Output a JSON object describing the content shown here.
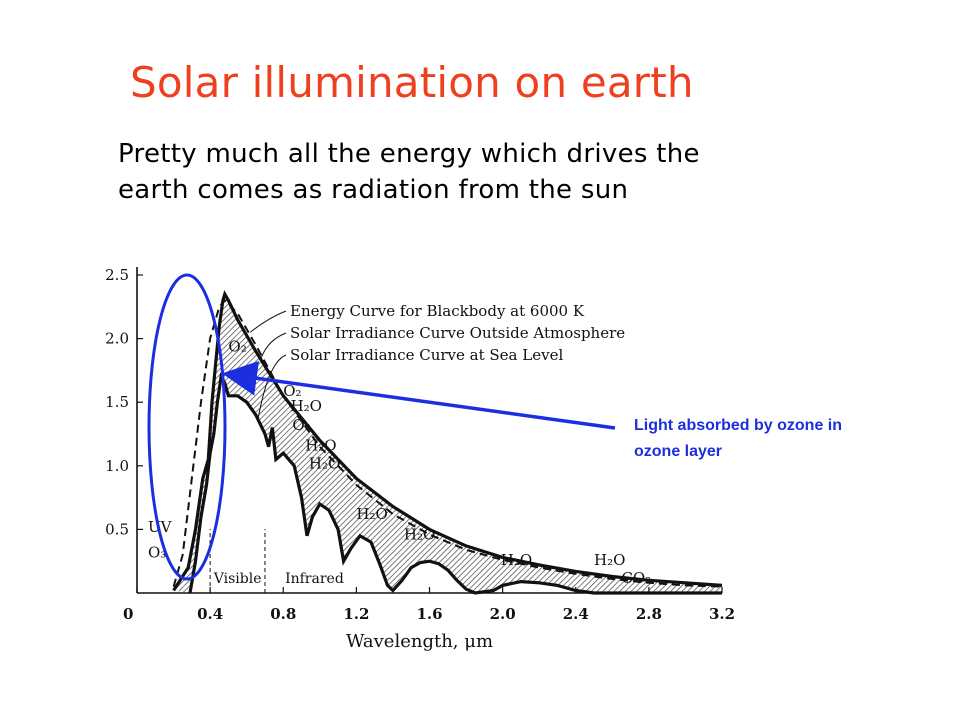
{
  "slide": {
    "title": "Solar illumination on earth",
    "title_color": "#ee3f1f",
    "body_lines": [
      "Pretty much all the energy which drives the",
      "earth comes as radiation from the sun"
    ]
  },
  "callout": {
    "lines": [
      "Light absorbed by ozone in",
      "ozone layer"
    ],
    "color": "#1b2fe0"
  },
  "chart_data": {
    "type": "line",
    "xlabel": "Wavelength, μm",
    "ylabel": "",
    "xlim": [
      0,
      3.2
    ],
    "ylim": [
      0,
      2.5
    ],
    "x_ticks": [
      "0",
      "0.4",
      "0.8",
      "1.2",
      "1.6",
      "2.0",
      "2.4",
      "2.8",
      "3.2"
    ],
    "y_ticks": [
      "0.5",
      "1.0",
      "1.5",
      "2.0",
      "2.5"
    ],
    "legend": [
      "Energy Curve for Blackbody at 6000 K",
      "Solar Irradiance Curve Outside Atmosphere",
      "Solar Irradiance Curve at Sea Level"
    ],
    "series": [
      {
        "name": "Energy Curve for Blackbody at 6000 K",
        "style": "dashed",
        "points": [
          [
            0.2,
            0.05
          ],
          [
            0.25,
            0.3
          ],
          [
            0.3,
            0.9
          ],
          [
            0.35,
            1.5
          ],
          [
            0.4,
            2.0
          ],
          [
            0.45,
            2.25
          ],
          [
            0.48,
            2.3
          ],
          [
            0.55,
            2.2
          ],
          [
            0.65,
            1.95
          ],
          [
            0.8,
            1.55
          ],
          [
            1.0,
            1.15
          ],
          [
            1.2,
            0.85
          ],
          [
            1.4,
            0.62
          ],
          [
            1.6,
            0.46
          ],
          [
            1.8,
            0.34
          ],
          [
            2.0,
            0.26
          ],
          [
            2.2,
            0.2
          ],
          [
            2.4,
            0.15
          ],
          [
            2.6,
            0.11
          ],
          [
            2.8,
            0.08
          ],
          [
            3.0,
            0.06
          ],
          [
            3.2,
            0.05
          ]
        ]
      },
      {
        "name": "Solar Irradiance Curve Outside Atmosphere",
        "style": "thick",
        "points": [
          [
            0.2,
            0.02
          ],
          [
            0.28,
            0.2
          ],
          [
            0.32,
            0.5
          ],
          [
            0.36,
            0.9
          ],
          [
            0.39,
            1.05
          ],
          [
            0.41,
            1.5
          ],
          [
            0.43,
            1.8
          ],
          [
            0.45,
            2.1
          ],
          [
            0.47,
            2.3
          ],
          [
            0.48,
            2.35
          ],
          [
            0.5,
            2.3
          ],
          [
            0.55,
            2.15
          ],
          [
            0.65,
            1.9
          ],
          [
            0.8,
            1.55
          ],
          [
            1.0,
            1.2
          ],
          [
            1.2,
            0.9
          ],
          [
            1.4,
            0.68
          ],
          [
            1.6,
            0.5
          ],
          [
            1.8,
            0.37
          ],
          [
            2.0,
            0.28
          ],
          [
            2.2,
            0.22
          ],
          [
            2.4,
            0.17
          ],
          [
            2.6,
            0.13
          ],
          [
            2.8,
            0.1
          ],
          [
            3.0,
            0.08
          ],
          [
            3.2,
            0.06
          ]
        ]
      },
      {
        "name": "Solar Irradiance Curve at Sea Level",
        "style": "thick",
        "points": [
          [
            0.29,
            0.0
          ],
          [
            0.32,
            0.25
          ],
          [
            0.35,
            0.6
          ],
          [
            0.38,
            0.85
          ],
          [
            0.4,
            1.1
          ],
          [
            0.42,
            1.25
          ],
          [
            0.44,
            1.5
          ],
          [
            0.46,
            1.7
          ],
          [
            0.48,
            1.65
          ],
          [
            0.5,
            1.55
          ],
          [
            0.55,
            1.55
          ],
          [
            0.6,
            1.5
          ],
          [
            0.65,
            1.4
          ],
          [
            0.7,
            1.25
          ],
          [
            0.72,
            1.15
          ],
          [
            0.74,
            1.3
          ],
          [
            0.76,
            1.05
          ],
          [
            0.8,
            1.1
          ],
          [
            0.86,
            1.0
          ],
          [
            0.9,
            0.75
          ],
          [
            0.93,
            0.45
          ],
          [
            0.96,
            0.6
          ],
          [
            1.0,
            0.7
          ],
          [
            1.05,
            0.65
          ],
          [
            1.1,
            0.5
          ],
          [
            1.13,
            0.25
          ],
          [
            1.17,
            0.35
          ],
          [
            1.22,
            0.45
          ],
          [
            1.28,
            0.4
          ],
          [
            1.33,
            0.22
          ],
          [
            1.37,
            0.06
          ],
          [
            1.4,
            0.02
          ],
          [
            1.45,
            0.1
          ],
          [
            1.5,
            0.2
          ],
          [
            1.55,
            0.24
          ],
          [
            1.6,
            0.25
          ],
          [
            1.65,
            0.23
          ],
          [
            1.7,
            0.18
          ],
          [
            1.75,
            0.1
          ],
          [
            1.8,
            0.03
          ],
          [
            1.85,
            0.0
          ],
          [
            1.95,
            0.02
          ],
          [
            2.0,
            0.06
          ],
          [
            2.1,
            0.09
          ],
          [
            2.2,
            0.08
          ],
          [
            2.3,
            0.06
          ],
          [
            2.4,
            0.02
          ],
          [
            2.5,
            0.0
          ],
          [
            2.7,
            0.0
          ],
          [
            2.9,
            0.0
          ],
          [
            3.2,
            0.0
          ]
        ]
      }
    ],
    "absorption_labels": [
      {
        "text": "O₃",
        "x": 0.06,
        "y": 0.28
      },
      {
        "text": "UV",
        "x": 0.06,
        "y": 0.48
      },
      {
        "text": "O₂",
        "x": 0.5,
        "y": 1.9
      },
      {
        "text": "O₂",
        "x": 0.8,
        "y": 1.55
      },
      {
        "text": "H₂O",
        "x": 0.84,
        "y": 1.43
      },
      {
        "text": "O₂",
        "x": 0.85,
        "y": 1.28
      },
      {
        "text": "H₂O",
        "x": 0.92,
        "y": 1.12
      },
      {
        "text": "H₂O",
        "x": 0.94,
        "y": 0.98
      },
      {
        "text": "H₂O",
        "x": 1.2,
        "y": 0.58
      },
      {
        "text": "H₂O",
        "x": 1.46,
        "y": 0.42
      },
      {
        "text": "H₂O",
        "x": 1.99,
        "y": 0.22
      },
      {
        "text": "H₂O",
        "x": 2.5,
        "y": 0.22
      },
      {
        "text": "CO₂",
        "x": 2.65,
        "y": 0.08
      }
    ],
    "region_labels": [
      {
        "text": "Visible",
        "x": 0.42,
        "y": 0.03
      },
      {
        "text": "Infrared",
        "x": 0.81,
        "y": 0.03
      }
    ],
    "annotation": {
      "text": "Light absorbed by ozone in ozone layer",
      "target": [
        0.47,
        1.75
      ],
      "color": "#1b2fe0"
    }
  }
}
